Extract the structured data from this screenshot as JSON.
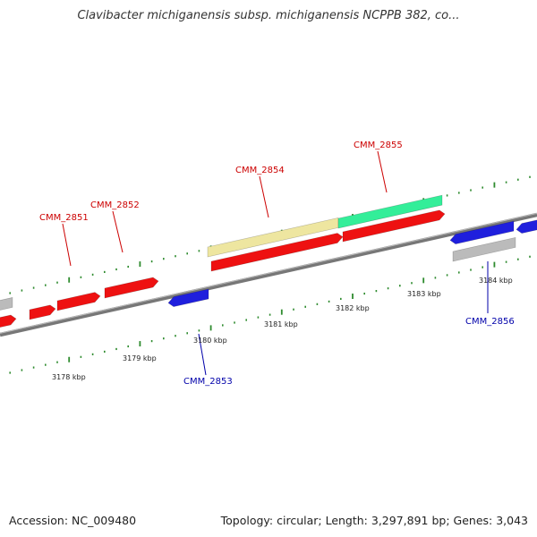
{
  "title": "Clavibacter michiganensis subsp. michiganensis NCPPB 382, co...",
  "footer": {
    "accession": "Accession: NC_009480",
    "summary": "Topology: circular; Length: 3,297,891 bp; Genes: 3,043"
  },
  "colors": {
    "backbone": "#777777",
    "tick": "#2e8b2e",
    "forward_cds": "#ee1111",
    "reverse_cds": "#1f1fdd",
    "pseudo": "#bbbbbb",
    "rna_like": "#eee6a0",
    "teal_feature": "#33ee99",
    "label_forward": "#cc0000",
    "label_reverse": "#0000aa"
  },
  "scale": {
    "unit": "kbp",
    "labels": [
      "3178 kbp",
      "3179 kbp",
      "3180 kbp",
      "3181 kbp",
      "3182 kbp",
      "3183 kbp",
      "3184 kbp"
    ]
  },
  "gene_labels": {
    "forward": [
      "CMM_2851",
      "CMM_2852",
      "CMM_2854",
      "CMM_2855"
    ],
    "reverse": [
      "CMM_2853",
      "CMM_2856"
    ]
  }
}
